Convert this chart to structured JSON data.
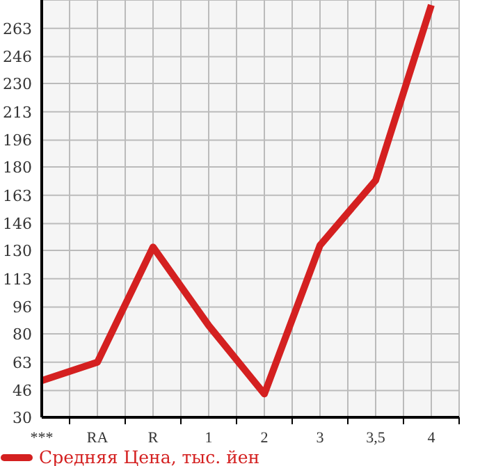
{
  "chart_data": {
    "type": "line",
    "categories": [
      "***",
      "RA",
      "R",
      "1",
      "2",
      "3",
      "3,5",
      "4"
    ],
    "series": [
      {
        "name": "Средняя Цена, тыс. йен",
        "color": "#d42020",
        "values": [
          52,
          63,
          132,
          85,
          44,
          133,
          172,
          277
        ]
      }
    ],
    "ylim": [
      30,
      280
    ],
    "yticks": [
      30,
      46,
      63,
      80,
      96,
      113,
      130,
      146,
      163,
      180,
      196,
      213,
      230,
      246,
      263
    ],
    "grid": true,
    "legend": "bottom left",
    "marker": "none",
    "line_style": "solid"
  }
}
